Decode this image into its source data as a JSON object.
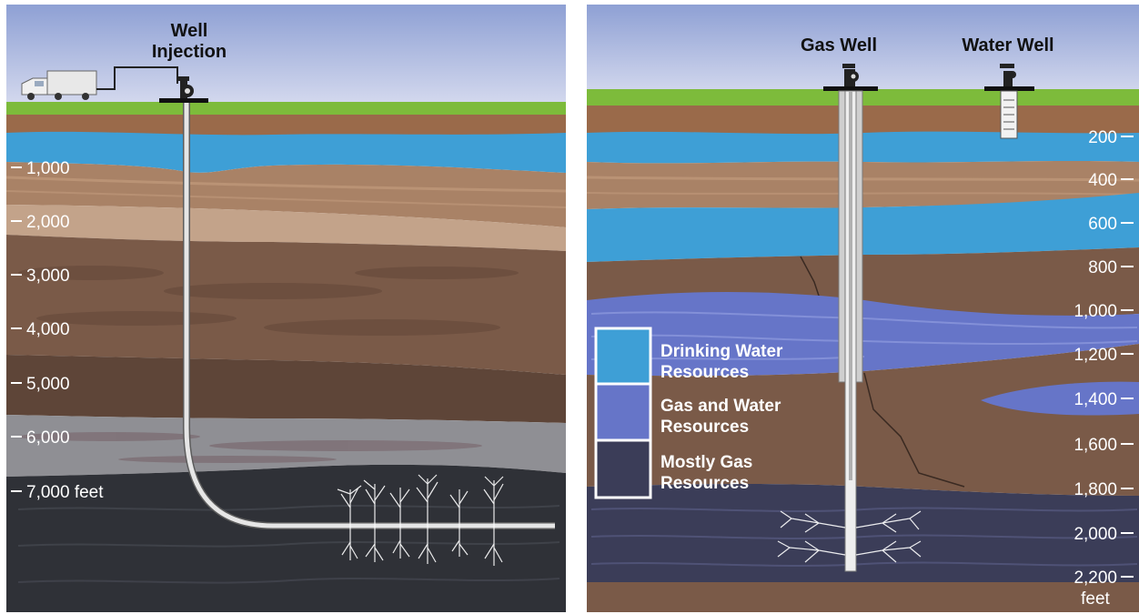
{
  "left_panel": {
    "title_line1": "Well",
    "title_line2": "Injection",
    "depth_labels": [
      "1,000",
      "2,000",
      "3,000",
      "4,000",
      "5,000",
      "6,000",
      "7,000 feet"
    ]
  },
  "right_panel": {
    "gas_well_label": "Gas Well",
    "water_well_label": "Water Well",
    "depth_labels": [
      "200",
      "400",
      "600",
      "800",
      "1,000",
      "1,200",
      "1,400",
      "1,600",
      "1,800",
      "2,000",
      "2,200"
    ],
    "depth_unit": "feet",
    "legend": [
      {
        "line1": "Drinking Water",
        "line2": "Resources",
        "color": "#3e9fd6"
      },
      {
        "line1": "Gas and Water",
        "line2": "Resources",
        "color": "#6675c8"
      },
      {
        "line1": "Mostly Gas",
        "line2": "Resources",
        "color": "#3b3d58"
      }
    ]
  },
  "colors": {
    "sky": "#b9c0e0",
    "grass": "#7dbb3b",
    "topsoil": "#9a6a4a",
    "aquifer": "#3e9fd6",
    "tan": "#a98266",
    "light_tan": "#c3a38a",
    "brown": "#7a5a48",
    "dark_brown": "#5e4538",
    "gray": "#8f8f94",
    "dark_shale": "#2f3137",
    "purple_blue": "#6675c8"
  }
}
